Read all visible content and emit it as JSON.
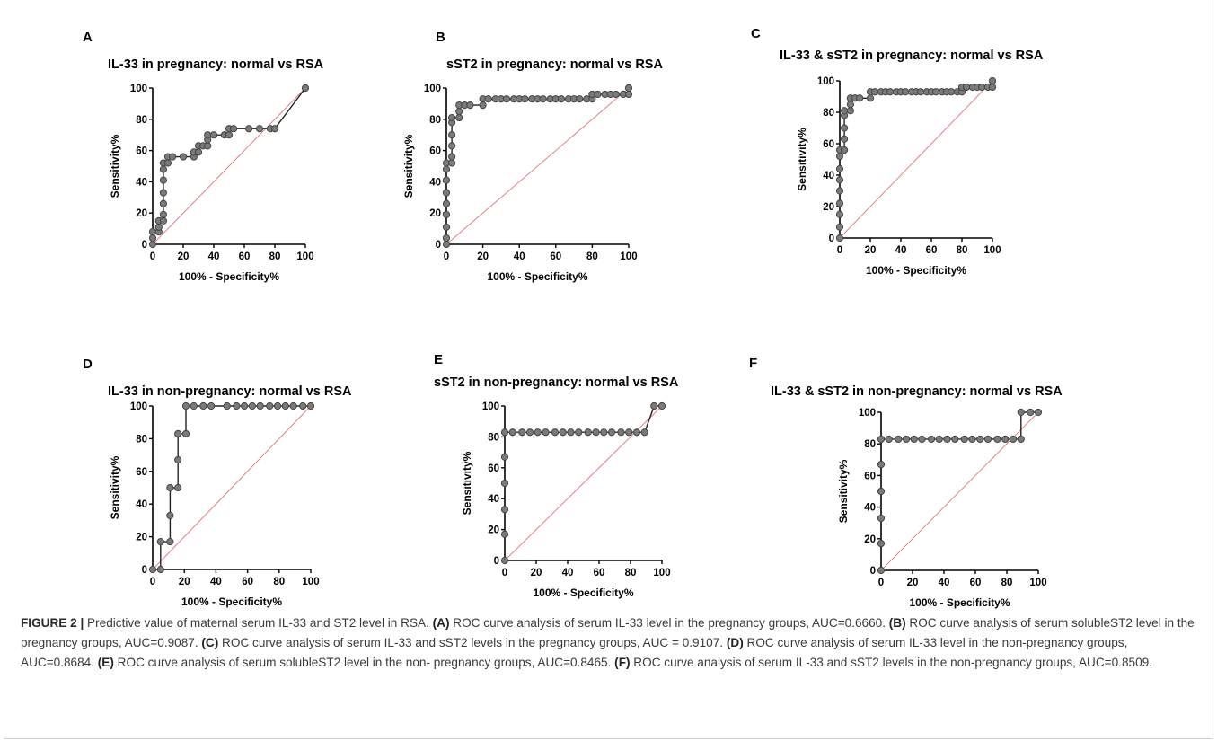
{
  "figure": {
    "caption_label": "FIGURE 2 |",
    "caption_parts": [
      {
        "bold": false,
        "text": " Predictive value of maternal serum IL-33 and ST2 level in RSA. "
      },
      {
        "bold": true,
        "text": "(A)"
      },
      {
        "bold": false,
        "text": " ROC curve analysis of serum IL-33 level in the pregnancy groups, AUC=0.6660. "
      },
      {
        "bold": true,
        "text": "(B)"
      },
      {
        "bold": false,
        "text": " ROC curve analysis of serum solubleST2 level in the pregnancy groups, AUC=0.9087. "
      },
      {
        "bold": true,
        "text": "(C)"
      },
      {
        "bold": false,
        "text": " ROC curve analysis of serum IL-33 and sST2 levels in the pregnancy groups, AUC = 0.9107. "
      },
      {
        "bold": true,
        "text": "(D)"
      },
      {
        "bold": false,
        "text": " ROC curve analysis of serum IL-33 level in the non-pregnancy groups, AUC=0.8684. "
      },
      {
        "bold": true,
        "text": "(E)"
      },
      {
        "bold": false,
        "text": " ROC curve analysis of serum solubleST2 level in the non- pregnancy groups, AUC=0.8465. "
      },
      {
        "bold": true,
        "text": "(F)"
      },
      {
        "bold": false,
        "text": " ROC curve analysis of serum IL-33 and sST2 levels in the non-pregnancy groups, AUC=0.8509."
      }
    ]
  },
  "colors": {
    "curve": "#222222",
    "marker_fill": "#7a7a7a",
    "marker_stroke": "#444444",
    "reference_line": "#e88080",
    "axis": "#000000"
  },
  "chart_data": [
    {
      "panel": "A",
      "type": "line",
      "title": "IL-33 in pregnancy: normal vs RSA",
      "xlabel": "100% - Specificity%",
      "ylabel": "Sensitivity%",
      "xlim": [
        0,
        100
      ],
      "ylim": [
        0,
        100
      ],
      "xticks": [
        0,
        20,
        40,
        60,
        80,
        100
      ],
      "yticks": [
        0,
        20,
        40,
        60,
        80,
        100
      ],
      "reference_line": true,
      "points": [
        [
          0,
          0
        ],
        [
          0,
          4
        ],
        [
          0,
          8
        ],
        [
          4,
          8
        ],
        [
          4,
          11
        ],
        [
          4,
          15
        ],
        [
          7,
          15
        ],
        [
          7,
          19
        ],
        [
          7,
          26
        ],
        [
          7,
          33
        ],
        [
          7,
          41
        ],
        [
          7,
          48
        ],
        [
          7,
          52
        ],
        [
          10,
          52
        ],
        [
          10,
          56
        ],
        [
          13,
          56
        ],
        [
          20,
          56
        ],
        [
          27,
          56
        ],
        [
          27,
          59
        ],
        [
          30,
          59
        ],
        [
          30,
          63
        ],
        [
          33,
          63
        ],
        [
          36,
          63
        ],
        [
          36,
          67
        ],
        [
          36,
          70
        ],
        [
          40,
          70
        ],
        [
          47,
          70
        ],
        [
          50,
          70
        ],
        [
          50,
          74
        ],
        [
          53,
          74
        ],
        [
          63,
          74
        ],
        [
          70,
          74
        ],
        [
          77,
          74
        ],
        [
          80,
          74
        ],
        [
          100,
          100
        ]
      ]
    },
    {
      "panel": "B",
      "type": "line",
      "title": "sST2 in pregnancy: normal vs RSA",
      "xlabel": "100% - Specificity%",
      "ylabel": "Sensitivity%",
      "xlim": [
        0,
        100
      ],
      "ylim": [
        0,
        100
      ],
      "xticks": [
        0,
        20,
        40,
        60,
        80,
        100
      ],
      "yticks": [
        0,
        20,
        40,
        60,
        80,
        100
      ],
      "reference_line": true,
      "points": [
        [
          0,
          0
        ],
        [
          0,
          4
        ],
        [
          0,
          11
        ],
        [
          0,
          19
        ],
        [
          0,
          26
        ],
        [
          0,
          33
        ],
        [
          0,
          41
        ],
        [
          0,
          48
        ],
        [
          0,
          52
        ],
        [
          3,
          52
        ],
        [
          3,
          56
        ],
        [
          3,
          63
        ],
        [
          3,
          70
        ],
        [
          3,
          78
        ],
        [
          3,
          81
        ],
        [
          7,
          81
        ],
        [
          7,
          85
        ],
        [
          7,
          89
        ],
        [
          10,
          89
        ],
        [
          13,
          89
        ],
        [
          20,
          89
        ],
        [
          20,
          93
        ],
        [
          23,
          93
        ],
        [
          27,
          93
        ],
        [
          30,
          93
        ],
        [
          33,
          93
        ],
        [
          37,
          93
        ],
        [
          40,
          93
        ],
        [
          43,
          93
        ],
        [
          47,
          93
        ],
        [
          50,
          93
        ],
        [
          53,
          93
        ],
        [
          57,
          93
        ],
        [
          60,
          93
        ],
        [
          63,
          93
        ],
        [
          67,
          93
        ],
        [
          70,
          93
        ],
        [
          73,
          93
        ],
        [
          77,
          93
        ],
        [
          80,
          93
        ],
        [
          80,
          96
        ],
        [
          83,
          96
        ],
        [
          87,
          96
        ],
        [
          90,
          96
        ],
        [
          93,
          96
        ],
        [
          97,
          96
        ],
        [
          100,
          96
        ],
        [
          100,
          100
        ]
      ]
    },
    {
      "panel": "C",
      "type": "line",
      "title": "IL-33 & sST2 in pregnancy: normal vs RSA",
      "xlabel": "100% - Specificity%",
      "ylabel": "Sensitivity%",
      "xlim": [
        0,
        100
      ],
      "ylim": [
        0,
        100
      ],
      "xticks": [
        0,
        20,
        40,
        60,
        80,
        100
      ],
      "yticks": [
        0,
        20,
        40,
        60,
        80,
        100
      ],
      "reference_line": true,
      "points": [
        [
          0,
          0
        ],
        [
          0,
          7
        ],
        [
          0,
          15
        ],
        [
          0,
          22
        ],
        [
          0,
          30
        ],
        [
          0,
          37
        ],
        [
          0,
          44
        ],
        [
          0,
          52
        ],
        [
          0,
          56
        ],
        [
          3,
          56
        ],
        [
          3,
          63
        ],
        [
          3,
          70
        ],
        [
          3,
          78
        ],
        [
          3,
          81
        ],
        [
          7,
          81
        ],
        [
          7,
          85
        ],
        [
          7,
          89
        ],
        [
          10,
          89
        ],
        [
          13,
          89
        ],
        [
          20,
          89
        ],
        [
          20,
          93
        ],
        [
          23,
          93
        ],
        [
          27,
          93
        ],
        [
          30,
          93
        ],
        [
          33,
          93
        ],
        [
          37,
          93
        ],
        [
          40,
          93
        ],
        [
          43,
          93
        ],
        [
          47,
          93
        ],
        [
          50,
          93
        ],
        [
          53,
          93
        ],
        [
          57,
          93
        ],
        [
          60,
          93
        ],
        [
          63,
          93
        ],
        [
          67,
          93
        ],
        [
          70,
          93
        ],
        [
          73,
          93
        ],
        [
          77,
          93
        ],
        [
          80,
          93
        ],
        [
          80,
          96
        ],
        [
          83,
          96
        ],
        [
          87,
          96
        ],
        [
          90,
          96
        ],
        [
          93,
          96
        ],
        [
          97,
          96
        ],
        [
          100,
          96
        ],
        [
          100,
          100
        ]
      ]
    },
    {
      "panel": "D",
      "type": "line",
      "title": "IL-33 in non-pregnancy: normal vs RSA",
      "xlabel": "100% - Specificity%",
      "ylabel": "Sensitivity%",
      "xlim": [
        0,
        100
      ],
      "ylim": [
        0,
        100
      ],
      "xticks": [
        0,
        20,
        40,
        60,
        80,
        100
      ],
      "yticks": [
        0,
        20,
        40,
        60,
        80,
        100
      ],
      "reference_line": true,
      "points": [
        [
          0,
          0
        ],
        [
          5,
          0
        ],
        [
          5,
          17
        ],
        [
          11,
          17
        ],
        [
          11,
          33
        ],
        [
          11,
          50
        ],
        [
          16,
          50
        ],
        [
          16,
          67
        ],
        [
          16,
          83
        ],
        [
          21,
          83
        ],
        [
          21,
          100
        ],
        [
          26,
          100
        ],
        [
          32,
          100
        ],
        [
          37,
          100
        ],
        [
          47,
          100
        ],
        [
          53,
          100
        ],
        [
          58,
          100
        ],
        [
          63,
          100
        ],
        [
          68,
          100
        ],
        [
          74,
          100
        ],
        [
          79,
          100
        ],
        [
          84,
          100
        ],
        [
          89,
          100
        ],
        [
          95,
          100
        ],
        [
          100,
          100
        ]
      ]
    },
    {
      "panel": "E",
      "type": "line",
      "title": "sST2 in non-pregnancy: normal vs RSA",
      "xlabel": "100% - Specificity%",
      "ylabel": "Sensitivity%",
      "xlim": [
        0,
        100
      ],
      "ylim": [
        0,
        100
      ],
      "xticks": [
        0,
        20,
        40,
        60,
        80,
        100
      ],
      "yticks": [
        0,
        20,
        40,
        60,
        80,
        100
      ],
      "reference_line": true,
      "points": [
        [
          0,
          0
        ],
        [
          0,
          17
        ],
        [
          0,
          33
        ],
        [
          0,
          50
        ],
        [
          0,
          67
        ],
        [
          0,
          83
        ],
        [
          5,
          83
        ],
        [
          11,
          83
        ],
        [
          16,
          83
        ],
        [
          21,
          83
        ],
        [
          26,
          83
        ],
        [
          32,
          83
        ],
        [
          37,
          83
        ],
        [
          42,
          83
        ],
        [
          47,
          83
        ],
        [
          53,
          83
        ],
        [
          58,
          83
        ],
        [
          63,
          83
        ],
        [
          68,
          83
        ],
        [
          74,
          83
        ],
        [
          79,
          83
        ],
        [
          84,
          83
        ],
        [
          89,
          83
        ],
        [
          95,
          100
        ],
        [
          100,
          100
        ]
      ]
    },
    {
      "panel": "F",
      "type": "line",
      "title": "IL-33 & sST2 in non-pregnancy: normal vs RSA",
      "xlabel": "100% - Specificity%",
      "ylabel": "Sensitivity%",
      "xlim": [
        0,
        100
      ],
      "ylim": [
        0,
        100
      ],
      "xticks": [
        0,
        20,
        40,
        60,
        80,
        100
      ],
      "yticks": [
        0,
        20,
        40,
        60,
        80,
        100
      ],
      "reference_line": true,
      "points": [
        [
          0,
          0
        ],
        [
          0,
          17
        ],
        [
          0,
          33
        ],
        [
          0,
          50
        ],
        [
          0,
          67
        ],
        [
          0,
          83
        ],
        [
          5,
          83
        ],
        [
          11,
          83
        ],
        [
          16,
          83
        ],
        [
          21,
          83
        ],
        [
          26,
          83
        ],
        [
          32,
          83
        ],
        [
          37,
          83
        ],
        [
          42,
          83
        ],
        [
          47,
          83
        ],
        [
          53,
          83
        ],
        [
          58,
          83
        ],
        [
          63,
          83
        ],
        [
          68,
          83
        ],
        [
          74,
          83
        ],
        [
          79,
          83
        ],
        [
          84,
          83
        ],
        [
          89,
          83
        ],
        [
          89,
          100
        ],
        [
          95,
          100
        ],
        [
          100,
          100
        ]
      ]
    }
  ]
}
